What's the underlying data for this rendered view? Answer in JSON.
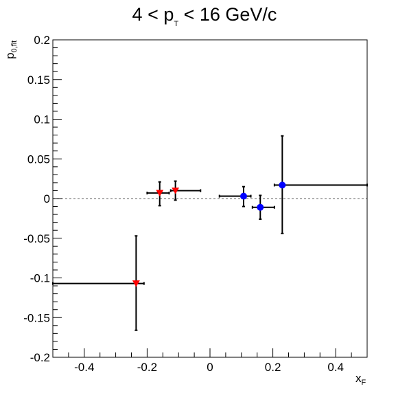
{
  "chart_data": {
    "type": "scatter",
    "title": {
      "main": "4 < p",
      "sub": "T",
      "rest": " < 16 GeV/c"
    },
    "ylabel": {
      "main": "p",
      "sub": "0,fit"
    },
    "xlabel": {
      "main": "x",
      "sub": "F"
    },
    "xlim": [
      -0.5,
      0.5
    ],
    "ylim": [
      -0.2,
      0.2
    ],
    "x_ticks": [
      {
        "value": -0.4,
        "label": "-0.4"
      },
      {
        "value": -0.2,
        "label": "-0.2"
      },
      {
        "value": 0,
        "label": "0"
      },
      {
        "value": 0.2,
        "label": "0.2"
      },
      {
        "value": 0.4,
        "label": "0.4"
      }
    ],
    "y_ticks": [
      {
        "value": -0.2,
        "label": "-0.2"
      },
      {
        "value": -0.15,
        "label": "-0.15"
      },
      {
        "value": -0.1,
        "label": "-0.1"
      },
      {
        "value": -0.05,
        "label": "-0.05"
      },
      {
        "value": 0,
        "label": "0"
      },
      {
        "value": 0.05,
        "label": "0.05"
      },
      {
        "value": 0.1,
        "label": "0.1"
      },
      {
        "value": 0.15,
        "label": "0.15"
      },
      {
        "value": 0.2,
        "label": "0.2"
      }
    ],
    "reference_line": {
      "y": 0,
      "style": "dashed",
      "color": "#808080"
    },
    "series": [
      {
        "marker": "triangle-down",
        "color": "#ff0000",
        "points": [
          {
            "x": -0.235,
            "y": -0.107,
            "xlo": -0.5,
            "xhi": -0.21,
            "ylo": -0.166,
            "yhi": -0.047
          },
          {
            "x": -0.16,
            "y": 0.007,
            "xlo": -0.2,
            "xhi": -0.13,
            "ylo": -0.009,
            "yhi": 0.021
          },
          {
            "x": -0.11,
            "y": 0.01,
            "xlo": -0.125,
            "xhi": -0.03,
            "ylo": -0.002,
            "yhi": 0.022
          }
        ]
      },
      {
        "marker": "circle",
        "color": "#0000ff",
        "points": [
          {
            "x": 0.107,
            "y": 0.003,
            "xlo": 0.03,
            "xhi": 0.13,
            "ylo": -0.01,
            "yhi": 0.015
          },
          {
            "x": 0.16,
            "y": -0.011,
            "xlo": 0.135,
            "xhi": 0.205,
            "ylo": -0.026,
            "yhi": 0.004
          },
          {
            "x": 0.23,
            "y": 0.017,
            "xlo": 0.205,
            "xhi": 0.5,
            "ylo": -0.044,
            "yhi": 0.079
          }
        ]
      }
    ]
  }
}
